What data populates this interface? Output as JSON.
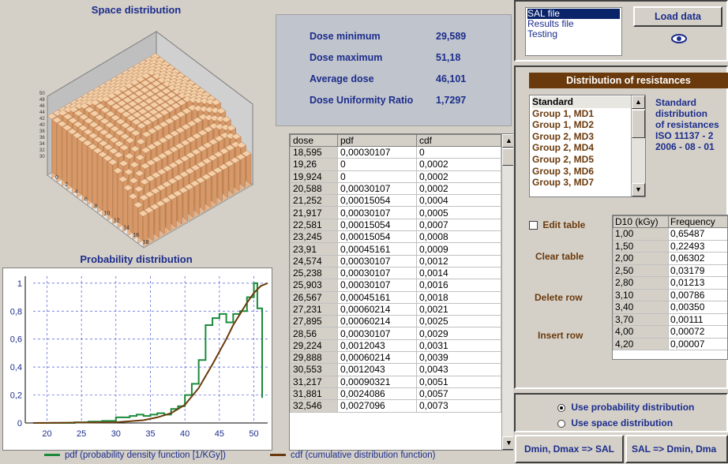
{
  "space": {
    "title": "Space distribution",
    "y_ticks": [
      "50",
      "48",
      "46",
      "44",
      "42",
      "40",
      "38",
      "36",
      "34",
      "32",
      "30"
    ],
    "x_ticks": [
      "0",
      "2",
      "4",
      "6",
      "8",
      "10",
      "12",
      "14",
      "16",
      "18"
    ]
  },
  "prob": {
    "title": "Probability distribution"
  },
  "stats": {
    "dose_min_label": "Dose minimum",
    "dose_min": "29,589",
    "dose_max_label": "Dose maximum",
    "dose_max": "51,18",
    "avg_label": "Average dose",
    "avg": "46,101",
    "dur_label": "Dose Uniformity Ratio",
    "dur": "1,7297"
  },
  "table": {
    "headers": [
      "dose",
      "pdf",
      "cdf"
    ],
    "rows": [
      [
        "18,595",
        "0,00030107",
        "0"
      ],
      [
        "19,26",
        "0",
        "0,0002"
      ],
      [
        "19,924",
        "0",
        "0,0002"
      ],
      [
        "20,588",
        "0,00030107",
        "0,0002"
      ],
      [
        "21,252",
        "0,00015054",
        "0,0004"
      ],
      [
        "21,917",
        "0,00030107",
        "0,0005"
      ],
      [
        "22,581",
        "0,00015054",
        "0,0007"
      ],
      [
        "23,245",
        "0,00015054",
        "0,0008"
      ],
      [
        "23,91",
        "0,00045161",
        "0,0009"
      ],
      [
        "24,574",
        "0,00030107",
        "0,0012"
      ],
      [
        "25,238",
        "0,00030107",
        "0,0014"
      ],
      [
        "25,903",
        "0,00030107",
        "0,0016"
      ],
      [
        "26,567",
        "0,00045161",
        "0,0018"
      ],
      [
        "27,231",
        "0,00060214",
        "0,0021"
      ],
      [
        "27,895",
        "0,00060214",
        "0,0025"
      ],
      [
        "28,56",
        "0,00030107",
        "0,0029"
      ],
      [
        "29,224",
        "0,0012043",
        "0,0031"
      ],
      [
        "29,888",
        "0,00060214",
        "0,0039"
      ],
      [
        "30,553",
        "0,0012043",
        "0,0043"
      ],
      [
        "31,217",
        "0,00090321",
        "0,0051"
      ],
      [
        "31,881",
        "0,0024086",
        "0,0057"
      ],
      [
        "32,546",
        "0,0027096",
        "0,0073"
      ]
    ]
  },
  "files": {
    "items": [
      "SAL file",
      "Results file",
      "Testing"
    ],
    "selected": 0,
    "load_label": "Load data"
  },
  "distribution": {
    "header": "Distribution of resistances",
    "items": [
      "Standard",
      "Group 1, MD1",
      "Group 1, MD2",
      "Group 2, MD3",
      "Group 2, MD4",
      "Group 2, MD5",
      "Group 3, MD6",
      "Group 3, MD7"
    ],
    "note": [
      "Standard",
      "distribution",
      "of resistances",
      "ISO 11137 - 2",
      "2006 - 08 - 01"
    ]
  },
  "edit": {
    "edit_table": "Edit table",
    "clear": "Clear table",
    "delete": "Delete row",
    "insert": "Insert row"
  },
  "freq": {
    "headers": [
      "D10 (kGy)",
      "Frequency"
    ],
    "rows": [
      [
        "1,00",
        "0,65487"
      ],
      [
        "1,50",
        "0,22493"
      ],
      [
        "2,00",
        "0,06302"
      ],
      [
        "2,50",
        "0,03179"
      ],
      [
        "2,80",
        "0,01213"
      ],
      [
        "3,10",
        "0,00786"
      ],
      [
        "3,40",
        "0,00350"
      ],
      [
        "3,70",
        "0,00111"
      ],
      [
        "4,00",
        "0,00072"
      ],
      [
        "4,20",
        "0,00007"
      ]
    ]
  },
  "options": {
    "opt1": "Use probability distribution",
    "opt2": "Use space distribution",
    "selected": 0
  },
  "bottom_buttons": {
    "b1": "Dmin, Dmax => SAL",
    "b2": "SAL => Dmin, Dma"
  },
  "legend": {
    "pdf": "pdf (probability density function  [1/KGy])",
    "cdf": "cdf (cumulative distribution function)"
  },
  "colors": {
    "pdf": "#1a8a3a",
    "cdf": "#6b3a0c",
    "title_blue": "#1c2d8c",
    "brown": "#6b3a0c"
  },
  "chart_data": {
    "type": "line",
    "xlim": [
      18,
      52
    ],
    "ylim": [
      0,
      1.05
    ],
    "x_ticks": [
      20,
      25,
      30,
      35,
      40,
      45,
      50
    ],
    "y_ticks": [
      "0",
      "0,2",
      "0,4",
      "0,6",
      "0,8",
      "1"
    ],
    "grid": true,
    "series": [
      {
        "name": "pdf (probability density function  [1/KGy])",
        "kind": "step",
        "x": [
          18,
          24,
          26,
          28,
          30,
          32,
          33,
          34,
          35,
          36,
          37,
          38,
          39,
          40,
          41,
          42,
          43,
          44,
          45,
          46,
          47,
          48,
          49,
          50,
          50.5,
          51.2
        ],
        "y": [
          0,
          0.005,
          0.01,
          0.015,
          0.04,
          0.05,
          0.06,
          0.05,
          0.06,
          0.07,
          0.06,
          0.1,
          0.12,
          0.2,
          0.28,
          0.45,
          0.7,
          0.75,
          0.78,
          0.72,
          0.78,
          0.8,
          0.9,
          1.0,
          0.82,
          0.18
        ]
      },
      {
        "name": "cdf (cumulative distribution function)",
        "kind": "line",
        "x": [
          18,
          30,
          34,
          36,
          38,
          40,
          42,
          44,
          46,
          47,
          48,
          49,
          50,
          51,
          52
        ],
        "y": [
          0,
          0.005,
          0.02,
          0.04,
          0.07,
          0.13,
          0.25,
          0.42,
          0.6,
          0.7,
          0.78,
          0.86,
          0.93,
          0.98,
          1.0
        ]
      }
    ]
  }
}
